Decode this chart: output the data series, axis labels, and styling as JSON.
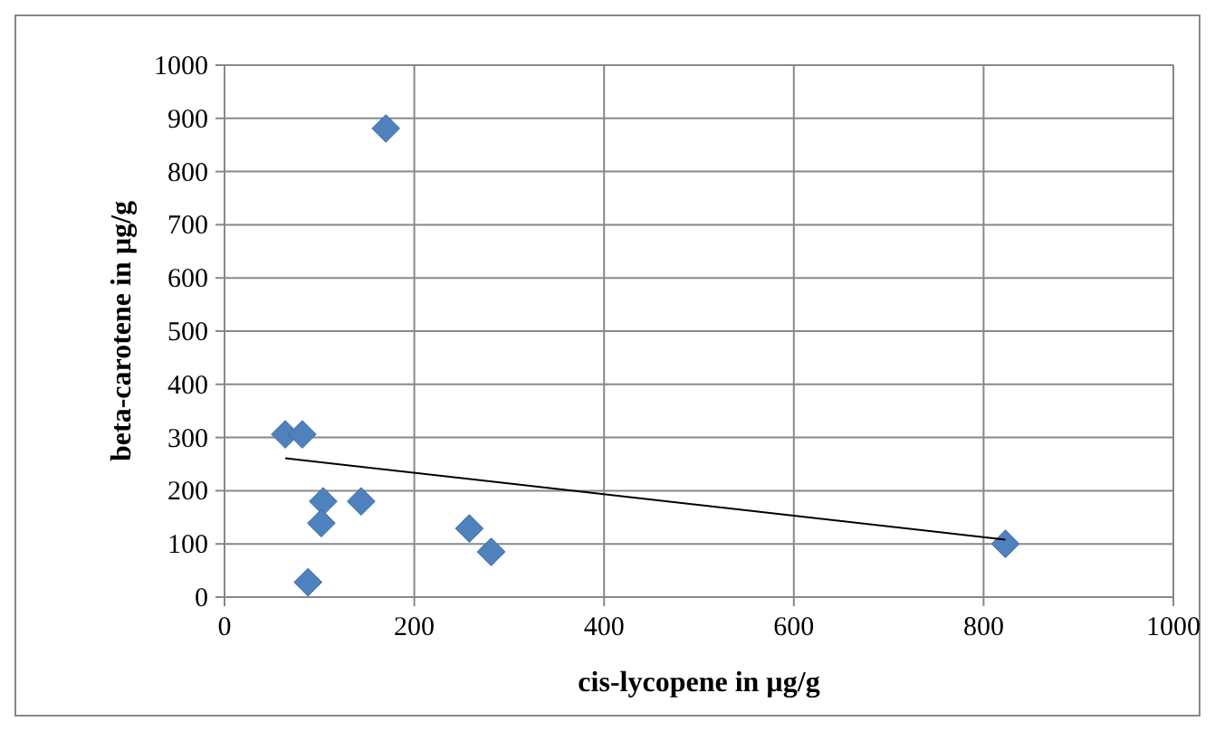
{
  "chart_data": {
    "type": "scatter",
    "xlabel": "cis-lycopene in µg/g",
    "ylabel": "beta-carotene in µg/g",
    "xlim": [
      0,
      1000
    ],
    "xticks": [
      0,
      200,
      400,
      600,
      800,
      1000
    ],
    "ylim": [
      0,
      1000
    ],
    "yticks": [
      0,
      100,
      200,
      300,
      400,
      500,
      600,
      700,
      800,
      900,
      1000
    ],
    "grid": true,
    "marker": "diamond",
    "series": [
      {
        "type": "scatter",
        "color": "#4f81bd",
        "x": [
          64,
          82,
          170,
          104,
          102,
          144,
          258,
          281,
          88,
          823
        ],
        "values": [
          306,
          306,
          881,
          180,
          139,
          180,
          129,
          85,
          28,
          100
        ]
      },
      {
        "type": "line",
        "color": "#000000",
        "marker": "none",
        "x": [
          64,
          823
        ],
        "values": [
          261,
          108
        ]
      }
    ]
  }
}
